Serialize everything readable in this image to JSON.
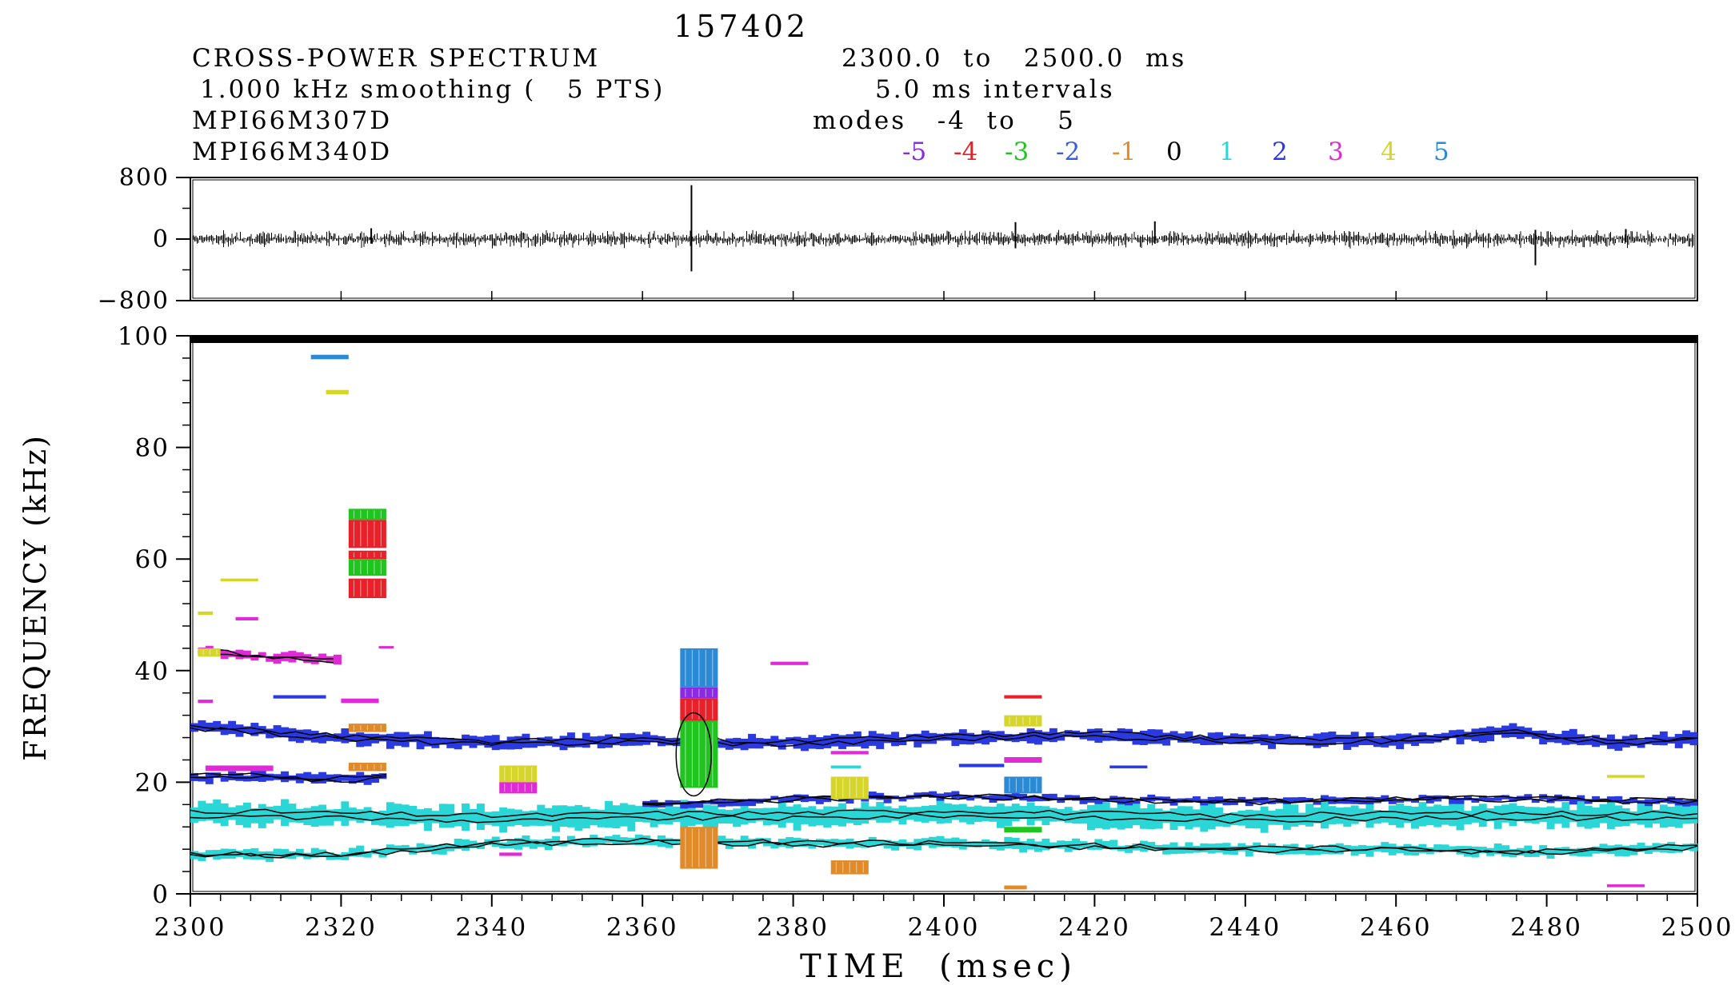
{
  "header": {
    "shot": "157402",
    "title": "CROSS-POWER SPECTRUM",
    "time_range": "2300.0  to   2500.0  ms",
    "smoothing": "1.000 kHz smoothing (   5 PTS)",
    "intervals": "5.0 ms intervals",
    "signal_1": "MPI66M307D",
    "signal_2": "MPI66M340D",
    "modes_text": "modes   -4  to    5"
  },
  "legend": {
    "modes": [
      {
        "label": "-5",
        "color": "#8a2be2"
      },
      {
        "label": "-4",
        "color": "#e8202a"
      },
      {
        "label": "-3",
        "color": "#1fc41f"
      },
      {
        "label": "-2",
        "color": "#3a5ce0"
      },
      {
        "label": "-1",
        "color": "#e08a2a"
      },
      {
        "label": "0",
        "color": "#000000"
      },
      {
        "label": "1",
        "color": "#2ad6d6"
      },
      {
        "label": "2",
        "color": "#2a3ae0"
      },
      {
        "label": "3",
        "color": "#e02ad6"
      },
      {
        "label": "4",
        "color": "#d6d62a"
      },
      {
        "label": "5",
        "color": "#2a8ad6"
      }
    ]
  },
  "chart_data": [
    {
      "type": "line",
      "panel": "signal",
      "x": [
        2300,
        2320,
        2340,
        2360,
        2366.5,
        2380,
        2400,
        2409.5,
        2420,
        2428,
        2440,
        2460,
        2478.5,
        2490,
        2500
      ],
      "y": [
        0,
        0,
        0,
        0,
        0,
        0,
        0,
        0,
        0,
        0,
        0,
        0,
        0,
        0,
        0
      ],
      "spikes": [
        {
          "x": 2366.5,
          "y_max": 700,
          "y_min": -420
        },
        {
          "x": 2409.5,
          "y_max": 220,
          "y_min": -120
        },
        {
          "x": 2428.0,
          "y_max": 230,
          "y_min": -60
        },
        {
          "x": 2478.5,
          "y_max": 120,
          "y_min": -340
        },
        {
          "x": 2324.0,
          "y_max": 140,
          "y_min": -60
        },
        {
          "x": 2490.5,
          "y_max": 130,
          "y_min": -40
        }
      ],
      "noise_amplitude": 60,
      "ylim": [
        -800,
        800
      ],
      "yticks": [
        "800",
        "0",
        "−800"
      ],
      "xlim": [
        2300,
        2500
      ]
    },
    {
      "type": "scatter",
      "panel": "spectrogram",
      "xlim": [
        2300,
        2500
      ],
      "ylim": [
        0,
        100
      ],
      "xticks": [
        "2300",
        "2320",
        "2340",
        "2360",
        "2380",
        "2400",
        "2420",
        "2440",
        "2460",
        "2480",
        "2500"
      ],
      "yticks": [
        "0",
        "20",
        "40",
        "60",
        "80",
        "100"
      ],
      "xlabel": "TIME  (msec)",
      "ylabel": "FREQUENCY (kHz)",
      "bands": [
        {
          "mode": "2",
          "x": [
            2300,
            2320,
            2340,
            2360,
            2380,
            2400,
            2420,
            2440,
            2460,
            2475,
            2490,
            2500
          ],
          "f": [
            30,
            28,
            27,
            27.5,
            27,
            28,
            28.5,
            27.5,
            27.5,
            29,
            27,
            28
          ],
          "width": 2
        },
        {
          "mode": "2",
          "x": [
            2300,
            2310,
            2320,
            2326
          ],
          "f": [
            21,
            21,
            20.5,
            21
          ],
          "width": 1.5
        },
        {
          "mode": "1",
          "x": [
            2300,
            2320,
            2340,
            2360,
            2380,
            2400,
            2420,
            2440,
            2460,
            2480,
            2500
          ],
          "f": [
            14.5,
            14,
            13.5,
            14,
            14,
            14.5,
            14,
            13.5,
            14,
            14,
            14
          ],
          "width": 3.5
        },
        {
          "mode": "1",
          "x": [
            2300,
            2320,
            2340,
            2360,
            2380,
            2400,
            2420,
            2440,
            2460,
            2480,
            2500
          ],
          "f": [
            7,
            7,
            9,
            9.5,
            9,
            9,
            8.5,
            8,
            8,
            7.5,
            8.5
          ],
          "width": 1.5
        },
        {
          "mode": "2",
          "x": [
            2360,
            2380,
            2400,
            2420,
            2440,
            2460,
            2480,
            2500
          ],
          "f": [
            16,
            17,
            17.5,
            17,
            16.5,
            17,
            17,
            16.5
          ],
          "width": 1
        },
        {
          "mode": "3",
          "x": [
            2301,
            2310,
            2320
          ],
          "f": [
            43.5,
            42.5,
            42
          ],
          "width": 1.5
        }
      ],
      "blocks": [
        {
          "mode": "5",
          "x0": 2316,
          "x1": 2321,
          "f0": 95.8,
          "f1": 96.6
        },
        {
          "mode": "4",
          "x0": 2318,
          "x1": 2321,
          "f0": 89.5,
          "f1": 90.3
        },
        {
          "mode": "-3",
          "x0": 2321,
          "x1": 2326,
          "f0": 67,
          "f1": 69
        },
        {
          "mode": "-4",
          "x0": 2321,
          "x1": 2326,
          "f0": 62,
          "f1": 67
        },
        {
          "mode": "-4",
          "x0": 2321,
          "x1": 2326,
          "f0": 60,
          "f1": 61.5
        },
        {
          "mode": "-3",
          "x0": 2321,
          "x1": 2326,
          "f0": 57,
          "f1": 60
        },
        {
          "mode": "-4",
          "x0": 2321,
          "x1": 2326,
          "f0": 53,
          "f1": 56.5
        },
        {
          "mode": "3",
          "x0": 2320,
          "x1": 2325,
          "f0": 34.2,
          "f1": 35
        },
        {
          "mode": "-1",
          "x0": 2321,
          "x1": 2326,
          "f0": 29,
          "f1": 30.5
        },
        {
          "mode": "-1",
          "x0": 2321,
          "x1": 2326,
          "f0": 22,
          "f1": 23.5
        },
        {
          "mode": "4",
          "x0": 2301,
          "x1": 2303,
          "f0": 50,
          "f1": 50.6
        },
        {
          "mode": "4",
          "x0": 2304,
          "x1": 2309,
          "f0": 56,
          "f1": 56.5
        },
        {
          "mode": "3",
          "x0": 2306,
          "x1": 2309,
          "f0": 49,
          "f1": 49.6
        },
        {
          "mode": "3",
          "x0": 2301,
          "x1": 2303,
          "f0": 34.2,
          "f1": 34.8
        },
        {
          "mode": "4",
          "x0": 2301,
          "x1": 2304,
          "f0": 42.5,
          "f1": 44
        },
        {
          "mode": "2",
          "x0": 2311,
          "x1": 2318,
          "f0": 35,
          "f1": 35.6
        },
        {
          "mode": "3",
          "x0": 2302,
          "x1": 2311,
          "f0": 22,
          "f1": 23
        },
        {
          "mode": "3",
          "x0": 2325,
          "x1": 2327,
          "f0": 44,
          "f1": 44.4
        },
        {
          "mode": "4",
          "x0": 2341,
          "x1": 2346,
          "f0": 20,
          "f1": 23
        },
        {
          "mode": "3",
          "x0": 2341,
          "x1": 2346,
          "f0": 18,
          "f1": 20
        },
        {
          "mode": "3",
          "x0": 2341,
          "x1": 2344,
          "f0": 6.8,
          "f1": 7.4
        },
        {
          "mode": "5",
          "x0": 2365,
          "x1": 2370,
          "f0": 37,
          "f1": 44
        },
        {
          "mode": "-5",
          "x0": 2365,
          "x1": 2370,
          "f0": 35,
          "f1": 37
        },
        {
          "mode": "-4",
          "x0": 2365,
          "x1": 2370,
          "f0": 31,
          "f1": 35
        },
        {
          "mode": "-3",
          "x0": 2365,
          "x1": 2370,
          "f0": 19,
          "f1": 31
        },
        {
          "mode": "-1",
          "x0": 2365,
          "x1": 2370,
          "f0": 4.5,
          "f1": 12
        },
        {
          "mode": "3",
          "x0": 2377,
          "x1": 2382,
          "f0": 41,
          "f1": 41.6
        },
        {
          "mode": "3",
          "x0": 2385,
          "x1": 2390,
          "f0": 25,
          "f1": 25.6
        },
        {
          "mode": "1",
          "x0": 2385,
          "x1": 2389,
          "f0": 22.5,
          "f1": 23
        },
        {
          "mode": "4",
          "x0": 2385,
          "x1": 2390,
          "f0": 17,
          "f1": 21
        },
        {
          "mode": "-1",
          "x0": 2385,
          "x1": 2390,
          "f0": 3.5,
          "f1": 6
        },
        {
          "mode": "-4",
          "x0": 2408,
          "x1": 2413,
          "f0": 35,
          "f1": 35.6
        },
        {
          "mode": "4",
          "x0": 2408,
          "x1": 2413,
          "f0": 30,
          "f1": 32
        },
        {
          "mode": "3",
          "x0": 2408,
          "x1": 2413,
          "f0": 23.5,
          "f1": 24.5
        },
        {
          "mode": "5",
          "x0": 2408,
          "x1": 2413,
          "f0": 18,
          "f1": 21
        },
        {
          "mode": "-3",
          "x0": 2408,
          "x1": 2413,
          "f0": 11,
          "f1": 12
        },
        {
          "mode": "-1",
          "x0": 2408,
          "x1": 2411,
          "f0": 0.8,
          "f1": 1.5
        },
        {
          "mode": "2",
          "x0": 2402,
          "x1": 2408,
          "f0": 22.7,
          "f1": 23.3
        },
        {
          "mode": "2",
          "x0": 2422,
          "x1": 2427,
          "f0": 22.5,
          "f1": 23
        },
        {
          "mode": "4",
          "x0": 2488,
          "x1": 2493,
          "f0": 20.8,
          "f1": 21.3
        },
        {
          "mode": "3",
          "x0": 2488,
          "x1": 2493,
          "f0": 1.2,
          "f1": 1.7
        }
      ]
    }
  ]
}
